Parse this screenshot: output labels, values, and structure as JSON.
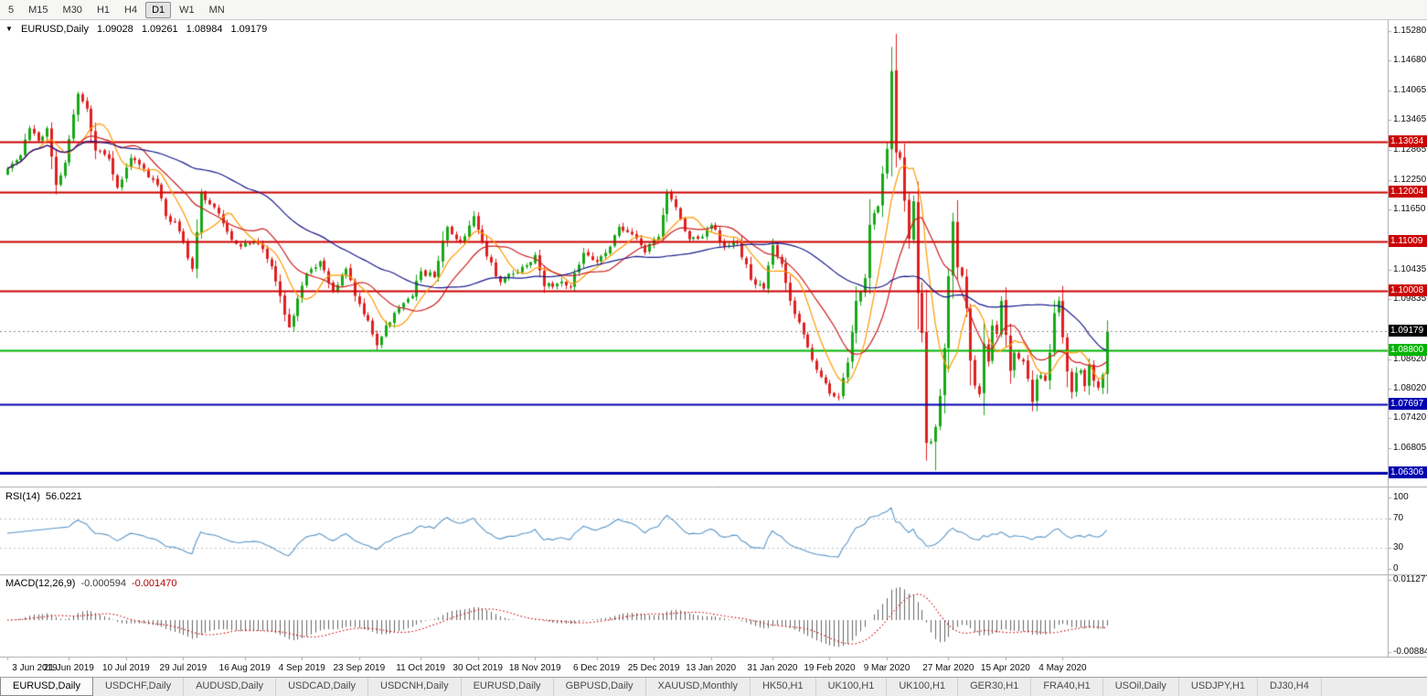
{
  "icons": {
    "chart_menu_triangle": "▼"
  },
  "toolbar": {
    "timeframes": [
      {
        "label": "5",
        "active": false
      },
      {
        "label": "M15",
        "active": false
      },
      {
        "label": "M30",
        "active": false
      },
      {
        "label": "H1",
        "active": false
      },
      {
        "label": "H4",
        "active": false
      },
      {
        "label": "D1",
        "active": true
      },
      {
        "label": "W1",
        "active": false
      },
      {
        "label": "MN",
        "active": false
      }
    ]
  },
  "chart_header": {
    "symbol": "EURUSD,Daily",
    "open": "1.09028",
    "high": "1.09261",
    "low": "1.08984",
    "close": "1.09179"
  },
  "price_axis": {
    "ticks": [
      "1.15280",
      "1.14680",
      "1.14065",
      "1.13465",
      "1.12865",
      "1.12250",
      "1.11650",
      "1.10435",
      "1.09835",
      "1.08620",
      "1.08020",
      "1.07420",
      "1.06805"
    ],
    "line_labels": [
      {
        "text": "1.13034",
        "color": "#cc0000",
        "kind": "level"
      },
      {
        "text": "1.12004",
        "color": "#cc0000",
        "kind": "level"
      },
      {
        "text": "1.11009",
        "color": "#cc0000",
        "kind": "level"
      },
      {
        "text": "1.10008",
        "color": "#cc0000",
        "kind": "level"
      },
      {
        "text": "1.09179",
        "color": "#000000",
        "kind": "current"
      },
      {
        "text": "1.08800",
        "color": "#00b400",
        "kind": "level"
      },
      {
        "text": "1.07697",
        "color": "#0000b0",
        "kind": "level"
      },
      {
        "text": "1.06306",
        "color": "#0000b0",
        "kind": "level"
      }
    ]
  },
  "rsi_panel": {
    "label": "RSI(14)",
    "value": "56.0221",
    "axis_labels": [
      "100",
      "70",
      "30",
      "0"
    ]
  },
  "macd_panel": {
    "label": "MACD(12,26,9)",
    "value_main": "-0.000594",
    "value_signal": "-0.001470",
    "axis_top": "0.011277",
    "axis_bottom": "-0.008845"
  },
  "date_axis": {
    "labels": [
      "3 Jun 2019",
      "21 Jun 2019",
      "10 Jul 2019",
      "29 Jul 2019",
      "16 Aug 2019",
      "4 Sep 2019",
      "23 Sep 2019",
      "11 Oct 2019",
      "30 Oct 2019",
      "18 Nov 2019",
      "6 Dec 2019",
      "25 Dec 2019",
      "13 Jan 2020",
      "31 Jan 2020",
      "19 Feb 2020",
      "9 Mar 2020",
      "27 Mar 2020",
      "15 Apr 2020",
      "4 May 2020"
    ]
  },
  "tabs": [
    {
      "label": "EURUSD,Daily",
      "active": true
    },
    {
      "label": "USDCHF,Daily"
    },
    {
      "label": "AUDUSD,Daily"
    },
    {
      "label": "USDCAD,Daily"
    },
    {
      "label": "USDCNH,Daily"
    },
    {
      "label": "EURUSD,Daily"
    },
    {
      "label": "GBPUSD,Daily"
    },
    {
      "label": "XAUUSD,Monthly"
    },
    {
      "label": "HK50,H1"
    },
    {
      "label": "UK100,H1"
    },
    {
      "label": "UK100,H1"
    },
    {
      "label": "GER30,H1"
    },
    {
      "label": "FRA40,H1"
    },
    {
      "label": "USOil,Daily"
    },
    {
      "label": "USDJPY,H1"
    },
    {
      "label": "DJ30,H4"
    }
  ],
  "chart_data": {
    "type": "candlestick",
    "title": "EURUSD,Daily",
    "bars": 251,
    "price_range": {
      "top": 1.1542,
      "bottom": 1.0607
    },
    "current_price": 1.09179,
    "candle_up_color": "#18a818",
    "candle_down_color": "#e02020",
    "close_anchors": [
      [
        0,
        1.1248
      ],
      [
        3,
        1.1275
      ],
      [
        5,
        1.133
      ],
      [
        7,
        1.1305
      ],
      [
        9,
        1.133
      ],
      [
        11,
        1.1215
      ],
      [
        13,
        1.126
      ],
      [
        16,
        1.14
      ],
      [
        18,
        1.137
      ],
      [
        20,
        1.1285
      ],
      [
        23,
        1.1268
      ],
      [
        25,
        1.121
      ],
      [
        28,
        1.127
      ],
      [
        31,
        1.1248
      ],
      [
        34,
        1.1215
      ],
      [
        36,
        1.1152
      ],
      [
        38,
        1.114
      ],
      [
        40,
        1.11
      ],
      [
        42,
        1.1045
      ],
      [
        44,
        1.12
      ],
      [
        47,
        1.117
      ],
      [
        50,
        1.112
      ],
      [
        53,
        1.109
      ],
      [
        56,
        1.1098
      ],
      [
        58,
        1.1085
      ],
      [
        60,
        1.105
      ],
      [
        62,
        1.099
      ],
      [
        64,
        1.0926
      ],
      [
        66,
        1.0985
      ],
      [
        68,
        1.1035
      ],
      [
        71,
        1.106
      ],
      [
        74,
        1.1
      ],
      [
        77,
        1.1045
      ],
      [
        79,
        1.099
      ],
      [
        82,
        1.094
      ],
      [
        84,
        1.089
      ],
      [
        86,
        1.093
      ],
      [
        89,
        1.0965
      ],
      [
        92,
        1.099
      ],
      [
        94,
        1.104
      ],
      [
        97,
        1.1028
      ],
      [
        100,
        1.113
      ],
      [
        103,
        1.11
      ],
      [
        106,
        1.1152
      ],
      [
        109,
        1.107
      ],
      [
        112,
        1.1018
      ],
      [
        115,
        1.1035
      ],
      [
        118,
        1.1052
      ],
      [
        120,
        1.1073
      ],
      [
        122,
        1.101
      ],
      [
        125,
        1.1015
      ],
      [
        128,
        1.1008
      ],
      [
        131,
        1.1077
      ],
      [
        134,
        1.1059
      ],
      [
        137,
        1.109
      ],
      [
        139,
        1.113
      ],
      [
        142,
        1.1115
      ],
      [
        145,
        1.1078
      ],
      [
        148,
        1.111
      ],
      [
        150,
        1.12
      ],
      [
        152,
        1.117
      ],
      [
        155,
        1.1105
      ],
      [
        158,
        1.111
      ],
      [
        160,
        1.1134
      ],
      [
        163,
        1.109
      ],
      [
        166,
        1.1098
      ],
      [
        169,
        1.1023
      ],
      [
        172,
        1.1005
      ],
      [
        174,
        1.1093
      ],
      [
        176,
        1.1055
      ],
      [
        178,
        1.098
      ],
      [
        181,
        1.0912
      ],
      [
        184,
        1.084
      ],
      [
        187,
        1.0792
      ],
      [
        189,
        1.0785
      ],
      [
        191,
        1.0855
      ],
      [
        193,
        1.098
      ],
      [
        195,
        1.1026
      ],
      [
        196,
        1.1134
      ],
      [
        198,
        1.1172
      ],
      [
        199,
        1.1238
      ],
      [
        200,
        1.1288
      ],
      [
        201,
        1.1446
      ],
      [
        202,
        1.1281
      ],
      [
        203,
        1.127
      ],
      [
        204,
        1.1183
      ],
      [
        205,
        1.1106
      ],
      [
        206,
        1.1182
      ],
      [
        207,
        1.0996
      ],
      [
        208,
        1.0915
      ],
      [
        209,
        1.0692
      ],
      [
        210,
        1.0694
      ],
      [
        211,
        1.0724
      ],
      [
        212,
        1.0787
      ],
      [
        213,
        1.0884
      ],
      [
        214,
        1.103
      ],
      [
        215,
        1.1141
      ],
      [
        216,
        1.1048
      ],
      [
        217,
        1.1031
      ],
      [
        218,
        1.0965
      ],
      [
        219,
        1.0859
      ],
      [
        220,
        1.0808
      ],
      [
        221,
        1.0791
      ],
      [
        222,
        1.0893
      ],
      [
        223,
        1.0857
      ],
      [
        224,
        1.093
      ],
      [
        225,
        1.0913
      ],
      [
        226,
        1.098
      ],
      [
        227,
        1.0911
      ],
      [
        228,
        1.0838
      ],
      [
        229,
        1.0875
      ],
      [
        230,
        1.0863
      ],
      [
        231,
        1.0857
      ],
      [
        232,
        1.0822
      ],
      [
        233,
        1.0775
      ],
      [
        234,
        1.0821
      ],
      [
        235,
        1.0829
      ],
      [
        236,
        1.0818
      ],
      [
        237,
        1.0875
      ],
      [
        238,
        1.0955
      ],
      [
        239,
        1.098
      ],
      [
        240,
        1.0906
      ],
      [
        241,
        1.0837
      ],
      [
        242,
        1.0795
      ],
      [
        243,
        1.0834
      ],
      [
        244,
        1.0839
      ],
      [
        245,
        1.0807
      ],
      [
        246,
        1.0849
      ],
      [
        247,
        1.0818
      ],
      [
        248,
        1.0804
      ],
      [
        249,
        1.083
      ],
      [
        250,
        1.0918
      ]
    ],
    "wick_overrides": {
      "64": {
        "low": 1.0926
      },
      "84": {
        "low": 1.0879
      },
      "201": {
        "high": 1.1495
      },
      "209": {
        "low": 1.0656
      },
      "211": {
        "low": 1.0636
      },
      "233": {
        "low": 1.0756
      }
    },
    "hlines": [
      {
        "price": 1.13034,
        "color": "#cc0000",
        "width": 2
      },
      {
        "price": 1.12004,
        "color": "#cc0000",
        "width": 2
      },
      {
        "price": 1.11009,
        "color": "#cc0000",
        "width": 2
      },
      {
        "price": 1.10008,
        "color": "#cc0000",
        "width": 2
      },
      {
        "price": 1.088,
        "color": "#00b400",
        "width": 2
      },
      {
        "price": 1.07697,
        "color": "#0000b0",
        "width": 2
      },
      {
        "price": 1.06306,
        "color": "#0000b0",
        "width": 3
      }
    ],
    "moving_averages": [
      {
        "period": 8,
        "color": "#ff9900"
      },
      {
        "period": 16,
        "color": "#cc2020"
      },
      {
        "period": 45,
        "color": "#1a1a8c"
      }
    ],
    "rsi": {
      "period": 14,
      "color": "#5a96c8",
      "levels": [
        70,
        30
      ]
    },
    "macd": {
      "fast": 12,
      "slow": 26,
      "signal": 9,
      "histogram_color": "#666666",
      "signal_color": "#cc0000"
    },
    "date_tick_indices": [
      0,
      14,
      27,
      40,
      54,
      67,
      80,
      94,
      107,
      120,
      134,
      147,
      160,
      174,
      187,
      200,
      214,
      227,
      240
    ]
  }
}
